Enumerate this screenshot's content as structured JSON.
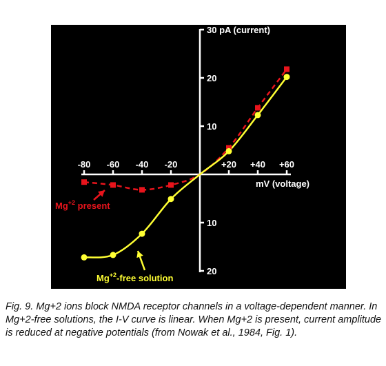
{
  "chart_data": {
    "type": "line",
    "xlabel": "mV (voltage)",
    "ylabel": "30 pA (current)",
    "xlim": [
      -80,
      60
    ],
    "ylim": [
      -20,
      30
    ],
    "x_ticks": [
      {
        "value": -80,
        "label": "-80"
      },
      {
        "value": -60,
        "label": "-60"
      },
      {
        "value": -40,
        "label": "-40"
      },
      {
        "value": -20,
        "label": "-20"
      },
      {
        "value": 20,
        "label": "+20"
      },
      {
        "value": 40,
        "label": "+40"
      },
      {
        "value": 60,
        "label": "+60"
      }
    ],
    "y_ticks": [
      {
        "value": 20,
        "label": "20"
      },
      {
        "value": 10,
        "label": "10"
      },
      {
        "value": -10,
        "label": "10"
      },
      {
        "value": -20,
        "label": "20"
      }
    ],
    "series": [
      {
        "key": "mg_present",
        "label_main": "Mg",
        "label_sup": "+2",
        "label_rest": " present",
        "color": "#e8141c",
        "marker": "square",
        "line_style": "dashed",
        "points": [
          {
            "x": -80,
            "y": -1.6
          },
          {
            "x": -60,
            "y": -2.2
          },
          {
            "x": -40,
            "y": -3.2
          },
          {
            "x": -20,
            "y": -2.2
          },
          {
            "x": 0,
            "y": 0
          },
          {
            "x": 20,
            "y": 5.5
          },
          {
            "x": 40,
            "y": 13.8
          },
          {
            "x": 60,
            "y": 21.8
          }
        ]
      },
      {
        "key": "mg_free",
        "label_main": "Mg",
        "label_sup": "+2",
        "label_rest": "-free solution",
        "color": "#ffff33",
        "marker": "circle",
        "line_style": "solid",
        "points": [
          {
            "x": -80,
            "y": -17.2
          },
          {
            "x": -60,
            "y": -16.7
          },
          {
            "x": -40,
            "y": -12.3
          },
          {
            "x": -20,
            "y": -5.1
          },
          {
            "x": 0,
            "y": 0
          },
          {
            "x": 20,
            "y": 4.8
          },
          {
            "x": 40,
            "y": 12.3
          },
          {
            "x": 60,
            "y": 20.2
          }
        ]
      }
    ]
  },
  "caption": "Fig. 9. Mg+2 ions block NMDA receptor channels in a voltage-dependent manner. In Mg+2-free solutions, the I-V curve is linear. When Mg+2 is present, current amplitude is reduced at negative potentials (from Nowak et al., 1984, Fig. 1).",
  "colors": {
    "background": "#000000",
    "axis": "#ffffff",
    "mg_present": "#e8141c",
    "mg_free": "#ffff33"
  }
}
